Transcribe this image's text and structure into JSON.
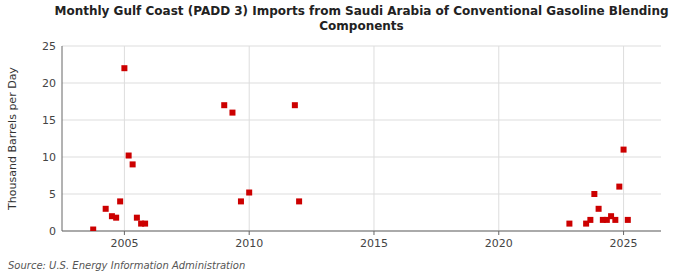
{
  "chart_data": {
    "type": "scatter",
    "title": "Monthly Gulf Coast (PADD 3) Imports from Saudi Arabia of Conventional Gasoline Blending\nComponents",
    "y_label": "Thousand Barrels per Day",
    "source": "Source: U.S. Energy Information Administration",
    "color": "#cc0000",
    "marker": "square",
    "grid": true,
    "xlim": [
      2002.5,
      2026.5
    ],
    "ylim": [
      0,
      25
    ],
    "xticks": [
      2005,
      2010,
      2015,
      2020,
      2025
    ],
    "yticks": [
      0,
      5,
      10,
      15,
      20,
      25
    ],
    "x": [
      2003.75,
      2004.25,
      2004.5,
      2004.67,
      2004.83,
      2005.0,
      2005.17,
      2005.33,
      2005.5,
      2005.67,
      2005.83,
      2009.0,
      2009.33,
      2009.67,
      2010.0,
      2011.83,
      2012.0,
      2022.83,
      2023.5,
      2023.67,
      2023.83,
      2024.0,
      2024.17,
      2024.33,
      2024.5,
      2024.67,
      2024.83,
      2025.0,
      2025.17
    ],
    "values": [
      0.2,
      3.0,
      2.0,
      1.8,
      4.0,
      22.0,
      10.2,
      9.0,
      1.8,
      1.0,
      1.0,
      17.0,
      16.0,
      4.0,
      5.2,
      17.0,
      4.0,
      1.0,
      1.0,
      1.5,
      5.0,
      3.0,
      1.5,
      1.5,
      2.0,
      1.5,
      6.0,
      11.0,
      1.5
    ]
  }
}
